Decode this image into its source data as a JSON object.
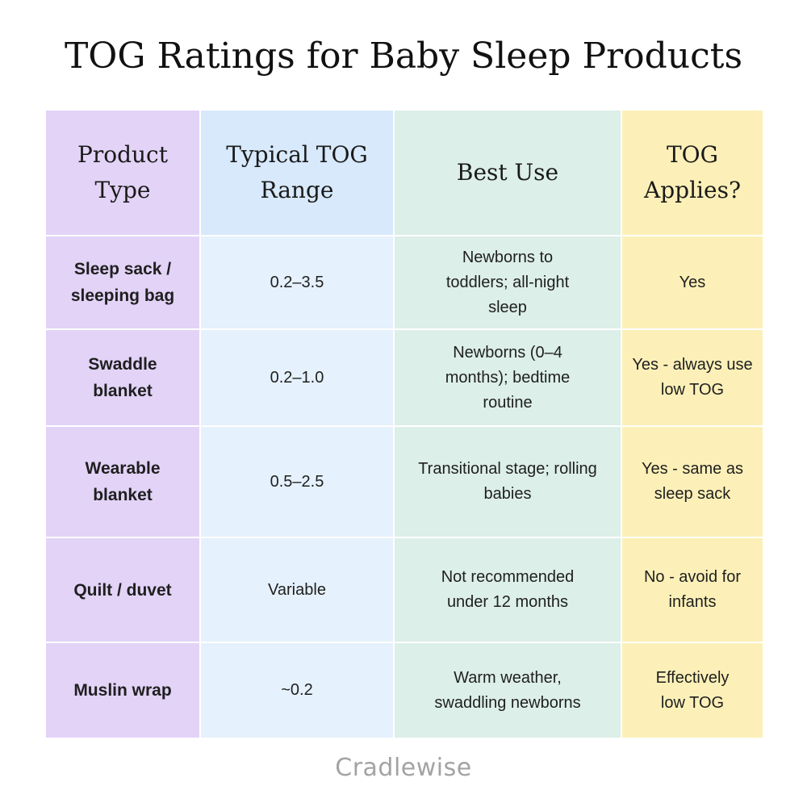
{
  "title": "TOG Ratings for Baby Sleep Products",
  "table": {
    "headers": [
      "Product Type",
      "Typical TOG Range",
      "Best Use",
      "TOG Applies?"
    ],
    "rows": [
      [
        "Sleep sack / sleeping bag",
        "0.2–3.5",
        "Newborns to toddlers; all-night sleep",
        "Yes"
      ],
      [
        "Swaddle blanket",
        "0.2–1.0",
        "Newborns (0–4 months); bedtime routine",
        "Yes - always use low TOG"
      ],
      [
        "Wearable blanket",
        "0.5–2.5",
        "Transitional stage; rolling babies",
        "Yes - same as sleep sack"
      ],
      [
        "Quilt / duvet",
        "Variable",
        "Not recommended under 12 months",
        "No - avoid for infants"
      ],
      [
        "Muslin wrap",
        "~0.2",
        "Warm weather, swaddling newborns",
        "Effectively low TOG"
      ]
    ]
  },
  "brand": "Cradlewise",
  "colors": {
    "column_1": "#e2d3f7",
    "column_2": "#e5f1fc",
    "column_2_header": "#d7e9fb",
    "column_3": "#dcefe8",
    "column_4": "#fcf0b8"
  }
}
